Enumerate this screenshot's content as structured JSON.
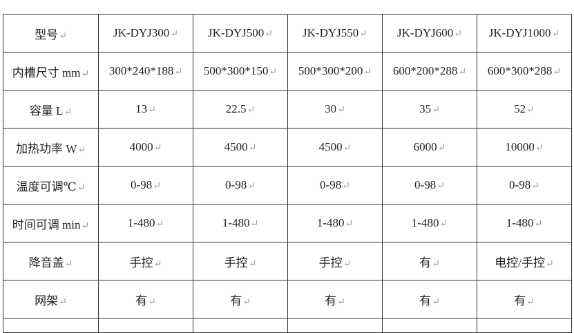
{
  "return_mark": "↵",
  "rows": [
    {
      "label": "型号",
      "cells": [
        "JK-DYJ300",
        "JK-DYJ500",
        "JK-DYJ550",
        "JK-DYJ600",
        "JK-DYJ1000"
      ]
    },
    {
      "label": "内槽尺寸 mm",
      "cells": [
        "300*240*188",
        "500*300*150",
        "500*300*200",
        "600*200*288",
        "600*300*288"
      ]
    },
    {
      "label": "容量 L",
      "cells": [
        "13",
        "22.5",
        "30",
        "35",
        "52"
      ]
    },
    {
      "label": "加热功率 W",
      "cells": [
        "4000",
        "4500",
        "4500",
        "6000",
        "10000"
      ]
    },
    {
      "label": "温度可调℃",
      "cells": [
        "0-98",
        "0-98",
        "0-98",
        "0-98",
        "0-98"
      ]
    },
    {
      "label": "时间可调 min",
      "cells": [
        "1-480",
        "1-480",
        "1-480",
        "1-480",
        "1-480"
      ]
    },
    {
      "label": "降音盖",
      "cells": [
        "手控",
        "手控",
        "手控",
        "有",
        "电控/手控"
      ]
    },
    {
      "label": "网架",
      "cells": [
        "有",
        "有",
        "有",
        "有",
        "有"
      ]
    }
  ]
}
